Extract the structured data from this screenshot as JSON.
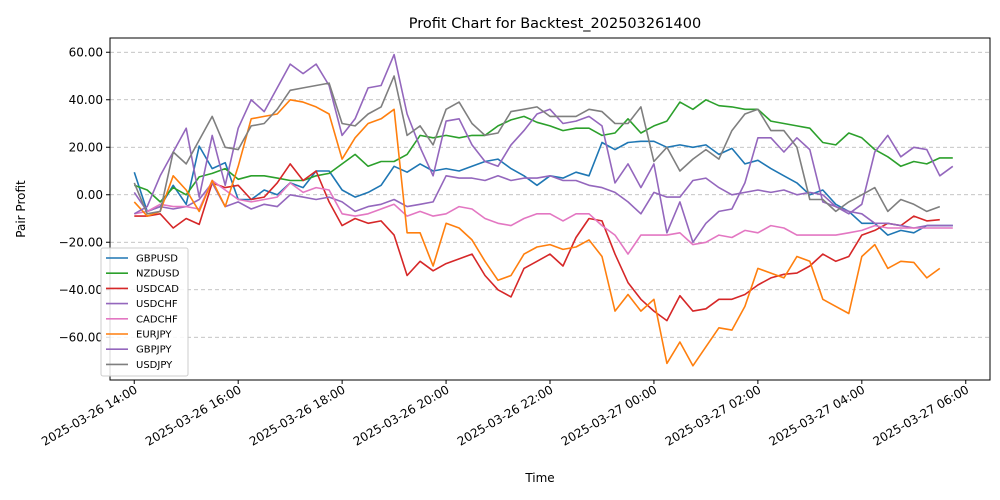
{
  "chart_data": {
    "type": "line",
    "title": "Profit Chart for Backtest_202503261400",
    "xlabel": "Time",
    "ylabel": "Pair Profit",
    "xlim": [
      "2025-03-26 13:32",
      "2025-03-27 06:28"
    ],
    "ylim": [
      -78,
      66
    ],
    "x_ticks": [
      {
        "at": "2025-03-26 14:00",
        "label": "2025-03-26 14:00"
      },
      {
        "at": "2025-03-26 16:00",
        "label": "2025-03-26 16:00"
      },
      {
        "at": "2025-03-26 18:00",
        "label": "2025-03-26 18:00"
      },
      {
        "at": "2025-03-26 20:00",
        "label": "2025-03-26 20:00"
      },
      {
        "at": "2025-03-26 22:00",
        "label": "2025-03-26 22:00"
      },
      {
        "at": "2025-03-27 00:00",
        "label": "2025-03-27 00:00"
      },
      {
        "at": "2025-03-27 02:00",
        "label": "2025-03-27 02:00"
      },
      {
        "at": "2025-03-27 04:00",
        "label": "2025-03-27 04:00"
      },
      {
        "at": "2025-03-27 06:00",
        "label": "2025-03-27 06:00"
      }
    ],
    "y_ticks": [
      {
        "value": -60,
        "label": "−60.00"
      },
      {
        "value": -40,
        "label": "−40.00"
      },
      {
        "value": -20,
        "label": "−20.00"
      },
      {
        "value": 0,
        "label": "0.00"
      },
      {
        "value": 20,
        "label": "20.00"
      },
      {
        "value": 40,
        "label": "40.00"
      },
      {
        "value": 60,
        "label": "60.00"
      }
    ],
    "grid": "y-dashed",
    "legend_position": "lower-left",
    "x_start": "2025-03-26 14:00",
    "x_step_minutes": 15,
    "series": [
      {
        "name": "GBPUSD",
        "color": "#1f77b4",
        "values": [
          9.5,
          -7,
          -5,
          4,
          -4,
          20.5,
          11,
          13.5,
          -2,
          -2,
          2,
          0,
          5,
          3,
          10,
          10,
          2,
          -1,
          1,
          4,
          12,
          9.5,
          13,
          10,
          11,
          10,
          12,
          14,
          15,
          11,
          8,
          4,
          8,
          7,
          9.5,
          8,
          22,
          19,
          22,
          22.5,
          22.5,
          20,
          21,
          20,
          21,
          17,
          19.5,
          13,
          14.5,
          11,
          8,
          5,
          0,
          2,
          -4,
          -7,
          -12,
          -12,
          -17,
          -15,
          -16,
          -13,
          -13,
          -13
        ]
      },
      {
        "name": "NZDUSD",
        "color": "#2ca02c",
        "values": [
          4,
          2,
          -3,
          3,
          0,
          7.5,
          9,
          11,
          6.5,
          8,
          8,
          7,
          6,
          6,
          8,
          9,
          13,
          17,
          12,
          14,
          14,
          17,
          25,
          24,
          25,
          24,
          25,
          25,
          29,
          31.5,
          33,
          30.5,
          29,
          27,
          28,
          28,
          25,
          26,
          32,
          26,
          29,
          31,
          39,
          36,
          40,
          37.5,
          37,
          36,
          36,
          31,
          30,
          29,
          28,
          22,
          21,
          26,
          24,
          19,
          16,
          12,
          14,
          13,
          15.5,
          15.5
        ]
      },
      {
        "name": "USDCAD",
        "color": "#d62728",
        "values": [
          -9,
          -9,
          -8,
          -14,
          -10,
          -12.5,
          5,
          3,
          4,
          -2,
          -1,
          5,
          13,
          6,
          10,
          -3,
          -13,
          -10,
          -12,
          -11,
          -17,
          -34,
          -28,
          -32,
          -29,
          -27,
          -25,
          -34,
          -40,
          -43,
          -31,
          -28,
          -25,
          -30,
          -18,
          -10,
          -11,
          -25,
          -37,
          -44,
          -49,
          -53,
          -42.5,
          -49,
          -48,
          -44,
          -44,
          -42,
          -38,
          -35,
          -33.5,
          -33,
          -30,
          -25,
          -28,
          -26,
          -17,
          -15,
          -12,
          -13,
          -9,
          -11,
          -10.5
        ]
      },
      {
        "name": "USDCHF",
        "color": "#9467bd",
        "values": [
          1,
          -7,
          -5,
          -6,
          -5,
          -2,
          5,
          -5,
          -3,
          -6,
          -4,
          -5,
          0,
          -1,
          -2,
          -1,
          -3,
          -7,
          -5,
          -4,
          -2,
          -5,
          -4,
          -3,
          8,
          7,
          7,
          6,
          8,
          6,
          7,
          7,
          8,
          6,
          6,
          4,
          3,
          1,
          -3,
          -8,
          1,
          -1,
          -1,
          6,
          7,
          3,
          0,
          1,
          2,
          1,
          2,
          0,
          1,
          0,
          -5,
          -7,
          -8,
          -12,
          -12,
          -13,
          -14,
          -13,
          -13,
          -13
        ]
      },
      {
        "name": "CADCHF",
        "color": "#e377c2",
        "values": [
          -8,
          -7,
          -4,
          -5,
          -5,
          -6,
          6,
          2,
          -2,
          -3,
          -2,
          -1,
          5,
          1,
          3,
          2,
          -8,
          -9,
          -8,
          -6,
          -4,
          -9,
          -7,
          -9,
          -8,
          -5,
          -6,
          -10,
          -12,
          -13,
          -10,
          -8,
          -8,
          -11,
          -8,
          -8,
          -13,
          -17,
          -25,
          -17,
          -17,
          -17,
          -16,
          -21,
          -20,
          -17,
          -18,
          -15,
          -16,
          -13,
          -14,
          -17,
          -17,
          -17,
          -17,
          -16,
          -15,
          -13,
          -14,
          -14,
          -14,
          -14,
          -14,
          -14
        ]
      },
      {
        "name": "EURJPY",
        "color": "#ff7f0e",
        "values": [
          -3,
          -9,
          -7,
          8,
          2,
          -7,
          6,
          -5,
          12,
          32,
          33,
          34,
          40,
          39,
          37,
          34,
          15,
          24,
          30,
          32,
          36,
          -16,
          -16,
          -30,
          -12,
          -14,
          -19,
          -28,
          -36,
          -34,
          -25,
          -22,
          -21,
          -23,
          -22,
          -19,
          -26,
          -49,
          -42,
          -49,
          -44,
          -71,
          -62,
          -72,
          -64,
          -56,
          -57,
          -47,
          -31,
          -33,
          -35,
          -26,
          -28,
          -44,
          -47,
          -50,
          -26,
          -21,
          -31,
          -28,
          -28.5,
          -35,
          -31
        ]
      },
      {
        "name": "GBPJPY",
        "color": "#9467bd",
        "values": [
          -8,
          -5,
          8,
          18,
          28,
          -1,
          25,
          4,
          28,
          40,
          35,
          45,
          55,
          51,
          55,
          46,
          25,
          32,
          45,
          46,
          59,
          34,
          20,
          8,
          31,
          32,
          21,
          14,
          12,
          21,
          27,
          34,
          36,
          30,
          31,
          33,
          29,
          5,
          13,
          3,
          13,
          -16,
          -3,
          -20,
          -12,
          -7,
          -6,
          5,
          24,
          24,
          18,
          24,
          19,
          -3,
          -5,
          -8,
          -4,
          18,
          25,
          16,
          20,
          19,
          8,
          12
        ]
      },
      {
        "name": "USDJPY",
        "color": "#7f7f7f",
        "values": [
          5,
          -8,
          -7,
          18,
          13,
          23,
          33,
          20,
          19,
          29,
          30,
          36,
          44,
          45,
          46,
          47,
          30,
          29,
          34,
          37,
          50,
          25,
          29,
          21,
          36,
          39,
          30,
          25,
          26,
          35,
          36,
          37,
          33,
          33,
          33,
          36,
          35,
          30,
          30,
          37,
          14,
          20,
          10,
          15,
          19,
          15,
          27,
          34,
          36,
          27,
          27,
          20,
          -2,
          -2,
          -7,
          -3,
          0,
          3,
          -7,
          -2,
          -4,
          -7,
          -5
        ]
      }
    ]
  }
}
